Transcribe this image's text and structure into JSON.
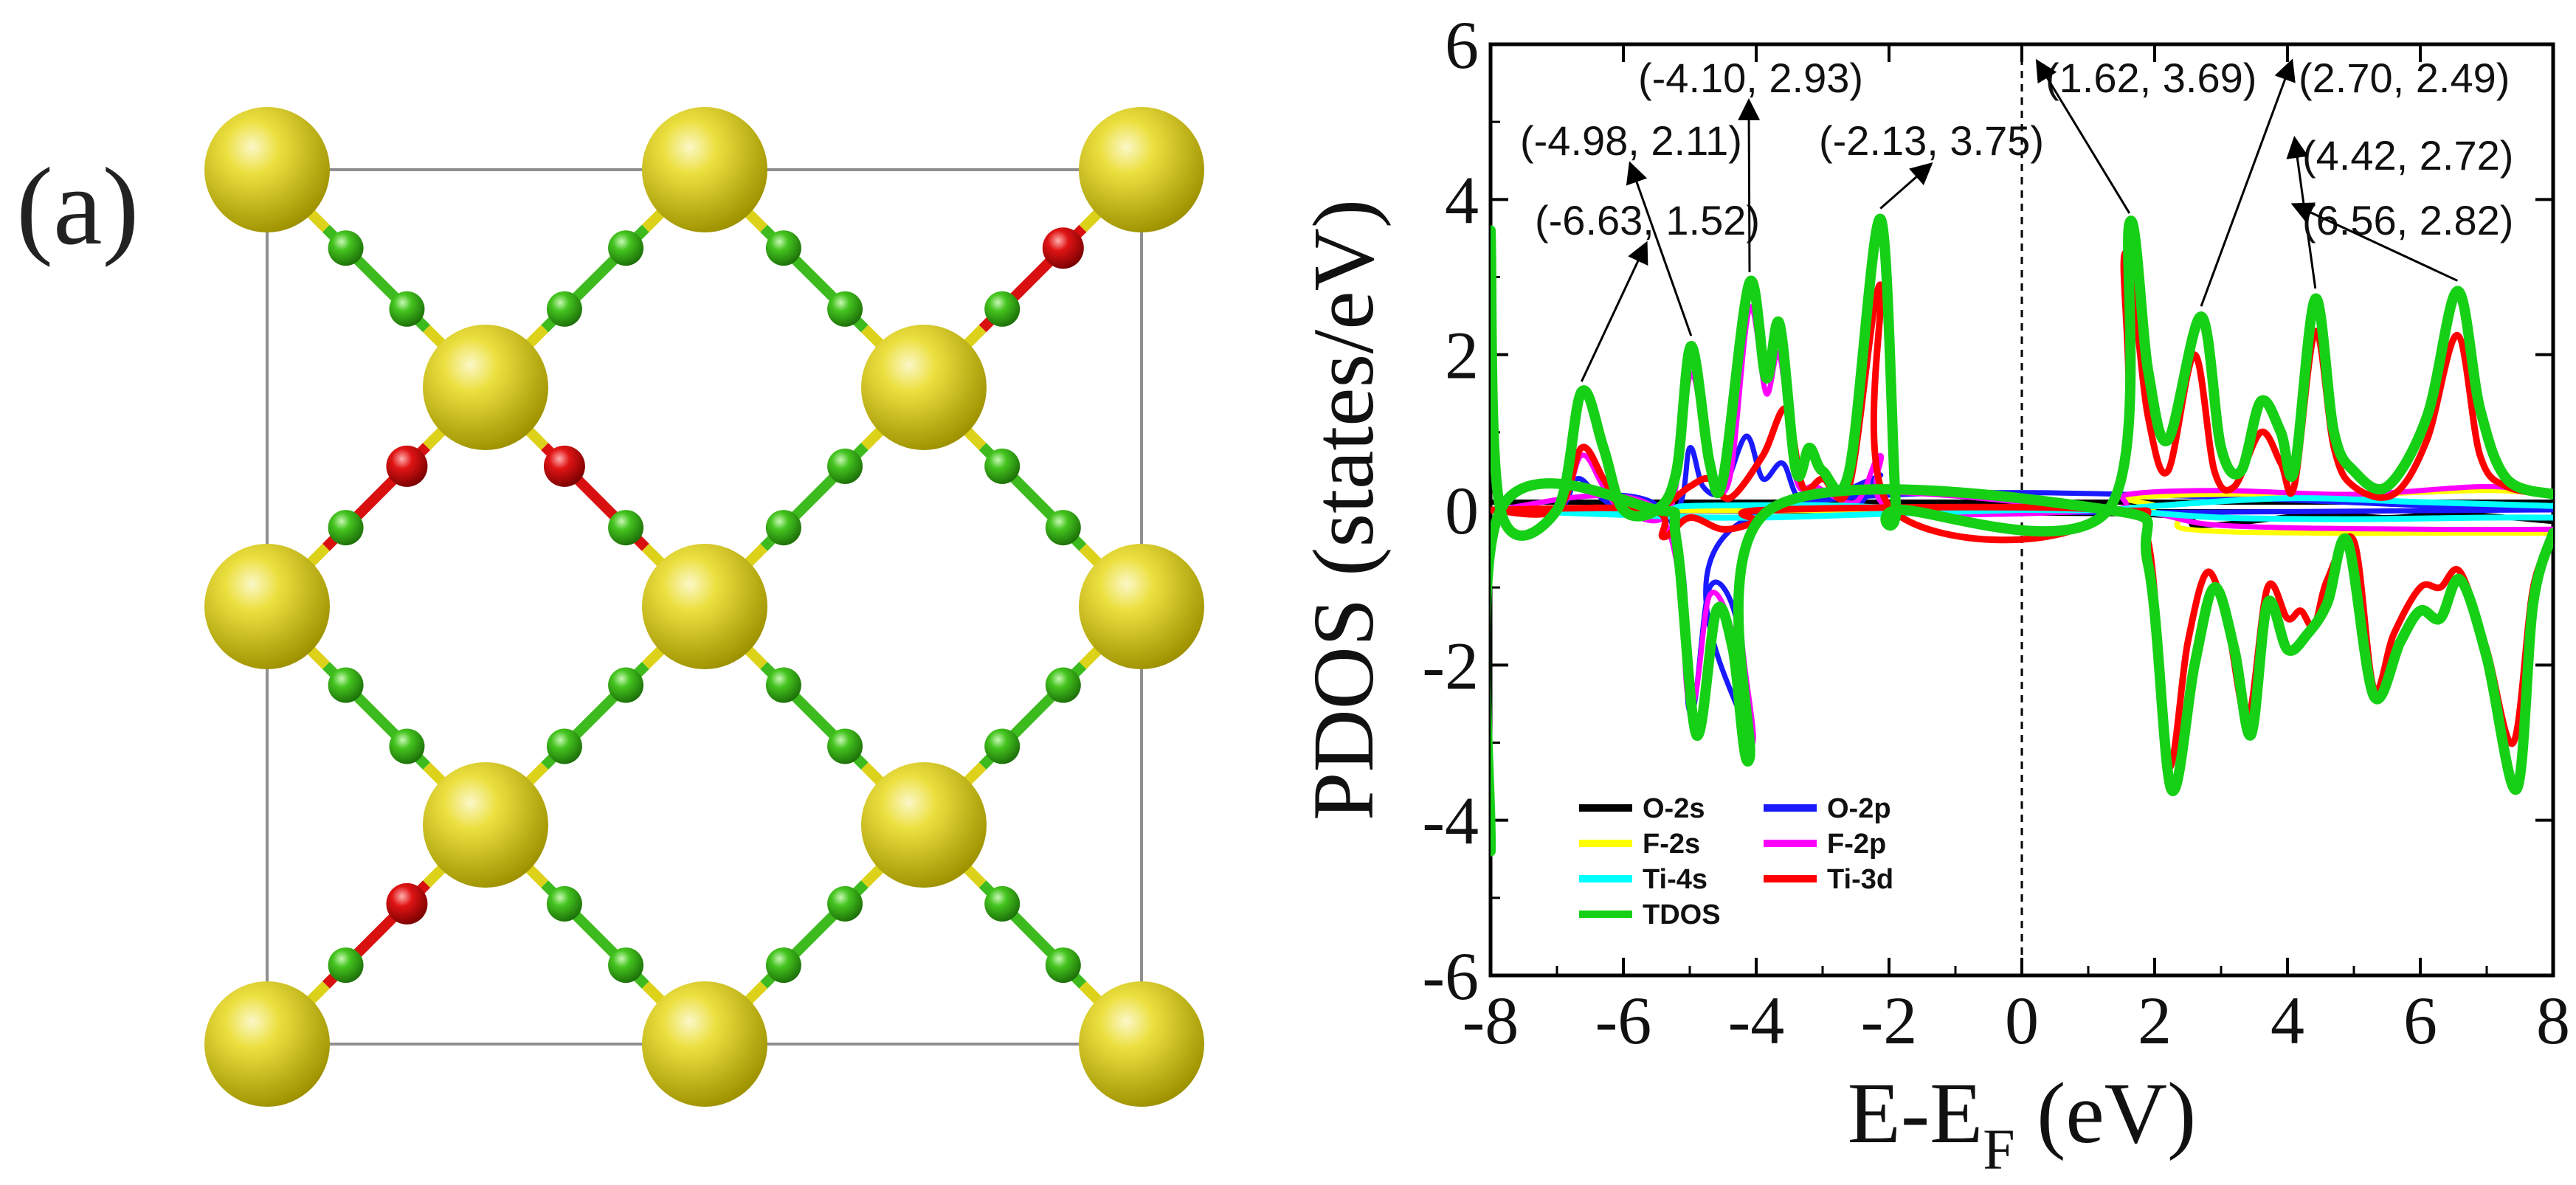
{
  "panel_label": "(a)",
  "structure": {
    "colors": {
      "ti": "#ddd21a",
      "f": "#3dbb1e",
      "o": "#d81010",
      "box": "#8f8f8f"
    }
  },
  "chart_data": {
    "type": "line",
    "xlabel": "E-E",
    "xlabel_sub": "F",
    "xlabel_unit": " (eV)",
    "ylabel": "PDOS (states/eV)",
    "xlim": [
      -8,
      8
    ],
    "ylim": [
      -6,
      6
    ],
    "xticks": [
      -8,
      -6,
      -4,
      -2,
      0,
      2,
      4,
      6,
      8
    ],
    "yticks": [
      -6,
      -4,
      -2,
      0,
      2,
      4,
      6
    ],
    "fermi_level": 0,
    "legend": {
      "position": "bottom-left",
      "columns": 2
    },
    "series": [
      {
        "name": "O-2s",
        "color": "#000000",
        "width": 7,
        "up": [
          [
            -8,
            0.1
          ],
          [
            -4.7,
            0.1
          ],
          [
            -2.5,
            0.1
          ],
          [
            1.5,
            0.1
          ],
          [
            2.5,
            0.1
          ],
          [
            3.5,
            0.1
          ],
          [
            4.6,
            0.1
          ],
          [
            5.6,
            0.1
          ],
          [
            6.6,
            0.1
          ],
          [
            8,
            0.1
          ]
        ],
        "down": [
          [
            -8,
            0
          ],
          [
            1.5,
            -0.05
          ],
          [
            2.7,
            -0.2
          ],
          [
            4.5,
            -0.05
          ],
          [
            5.5,
            -0.1
          ],
          [
            6.5,
            -0.05
          ],
          [
            8,
            -0.15
          ]
        ]
      },
      {
        "name": "O-2p",
        "color": "#1a1aff",
        "width": 7,
        "up": [
          [
            -8,
            0
          ],
          [
            -7,
            0
          ],
          [
            -6.7,
            0.4
          ],
          [
            -6.4,
            0.2
          ],
          [
            -6.0,
            0
          ],
          [
            -5.2,
            0
          ],
          [
            -5.0,
            0.8
          ],
          [
            -4.8,
            0.3
          ],
          [
            -4.5,
            0.25
          ],
          [
            -4.15,
            0.95
          ],
          [
            -3.9,
            0.4
          ],
          [
            -3.6,
            0.6
          ],
          [
            -3.3,
            0.1
          ],
          [
            -2.5,
            0.05
          ],
          [
            -2.13,
            0.45
          ],
          [
            -1.9,
            0
          ],
          [
            8,
            0
          ]
        ],
        "down": [
          [
            -8,
            0
          ],
          [
            -5.4,
            0
          ],
          [
            -5.0,
            -2.6
          ],
          [
            -4.7,
            -1.0
          ],
          [
            -4.3,
            -1.4
          ],
          [
            -4.1,
            -3.0
          ],
          [
            -3.8,
            0
          ],
          [
            8,
            0
          ]
        ]
      },
      {
        "name": "F-2s",
        "color": "#ffff00",
        "width": 7,
        "up": [
          [
            -8,
            0
          ],
          [
            1.3,
            0
          ],
          [
            1.6,
            0.15
          ],
          [
            3.0,
            0.2
          ],
          [
            5.0,
            0.2
          ],
          [
            7.0,
            0.25
          ],
          [
            8,
            0.2
          ]
        ],
        "down": [
          [
            -8,
            0
          ],
          [
            1.3,
            0
          ],
          [
            2.5,
            -0.25
          ],
          [
            4.5,
            -0.3
          ],
          [
            6.5,
            -0.3
          ],
          [
            8,
            -0.3
          ]
        ]
      },
      {
        "name": "F-2p",
        "color": "#ff00ff",
        "width": 7,
        "up": [
          [
            -8,
            0
          ],
          [
            -7.0,
            0
          ],
          [
            -6.63,
            0.7
          ],
          [
            -6.3,
            0.3
          ],
          [
            -6.0,
            0
          ],
          [
            -5.3,
            0
          ],
          [
            -4.98,
            1.75
          ],
          [
            -4.7,
            0.5
          ],
          [
            -4.4,
            0.4
          ],
          [
            -4.1,
            2.6
          ],
          [
            -3.85,
            1.5
          ],
          [
            -3.65,
            2.0
          ],
          [
            -3.4,
            0.4
          ],
          [
            -3.1,
            0.3
          ],
          [
            -2.5,
            0.1
          ],
          [
            -2.13,
            0.7
          ],
          [
            -1.9,
            0
          ],
          [
            1.3,
            0
          ],
          [
            1.6,
            0.2
          ],
          [
            3,
            0.25
          ],
          [
            5,
            0.2
          ],
          [
            7,
            0.3
          ],
          [
            8,
            0.2
          ]
        ],
        "down": [
          [
            -8,
            0
          ],
          [
            -5.5,
            0
          ],
          [
            -5.0,
            -2.5
          ],
          [
            -4.7,
            -1.1
          ],
          [
            -4.35,
            -1.6
          ],
          [
            -4.05,
            -3.0
          ],
          [
            -3.8,
            0
          ],
          [
            1.3,
            0
          ],
          [
            3,
            -0.2
          ],
          [
            6,
            -0.25
          ],
          [
            8,
            -0.25
          ]
        ]
      },
      {
        "name": "Ti-4s",
        "color": "#00ffff",
        "width": 8,
        "up": [
          [
            -8,
            0
          ],
          [
            -5.5,
            0
          ],
          [
            -5.0,
            0.05
          ],
          [
            -3,
            0.06
          ],
          [
            -2,
            0.03
          ],
          [
            0,
            0
          ],
          [
            1.3,
            0
          ],
          [
            2,
            0.05
          ],
          [
            4,
            0.15
          ],
          [
            6,
            0.1
          ],
          [
            8,
            0.05
          ]
        ],
        "down": [
          [
            -8,
            0
          ],
          [
            -5.5,
            -0.08
          ],
          [
            -4,
            -0.1
          ],
          [
            -2,
            -0.05
          ],
          [
            0,
            0
          ],
          [
            1.3,
            0
          ],
          [
            3,
            -0.1
          ],
          [
            5,
            -0.12
          ],
          [
            7,
            -0.1
          ],
          [
            8,
            -0.1
          ]
        ]
      },
      {
        "name": "Ti-3d",
        "color": "#ff0000",
        "width": 9,
        "up": [
          [
            -8,
            0
          ],
          [
            -7.0,
            0
          ],
          [
            -6.63,
            0.8
          ],
          [
            -6.3,
            0.4
          ],
          [
            -6.0,
            0
          ],
          [
            -5.5,
            0
          ],
          [
            -5.0,
            0.3
          ],
          [
            -4.7,
            0.4
          ],
          [
            -4.4,
            0.15
          ],
          [
            -3.9,
            0.7
          ],
          [
            -3.55,
            1.3
          ],
          [
            -3.3,
            0.3
          ],
          [
            -3.0,
            0.4
          ],
          [
            -2.6,
            0.3
          ],
          [
            -2.13,
            2.9
          ],
          [
            -1.95,
            0
          ],
          [
            1.3,
            0
          ],
          [
            1.55,
            3.3
          ],
          [
            1.9,
            1.2
          ],
          [
            2.2,
            0.5
          ],
          [
            2.6,
            2.0
          ],
          [
            2.9,
            0.5
          ],
          [
            3.2,
            0.3
          ],
          [
            3.6,
            1.0
          ],
          [
            3.9,
            0.6
          ],
          [
            4.1,
            0.3
          ],
          [
            4.42,
            2.3
          ],
          [
            4.7,
            0.8
          ],
          [
            5.0,
            0.3
          ],
          [
            5.6,
            0.2
          ],
          [
            6.1,
            0.9
          ],
          [
            6.56,
            2.25
          ],
          [
            6.9,
            0.7
          ],
          [
            7.3,
            0.3
          ],
          [
            8,
            0.2
          ]
        ],
        "down": [
          [
            -8,
            0
          ],
          [
            -5.6,
            0
          ],
          [
            -5.4,
            -0.35
          ],
          [
            -5.0,
            -0.1
          ],
          [
            -4.5,
            -0.25
          ],
          [
            -4.0,
            -0.15
          ],
          [
            -3.8,
            0
          ],
          [
            1.3,
            0
          ],
          [
            1.9,
            -0.4
          ],
          [
            2.2,
            -3.3
          ],
          [
            2.5,
            -1.7
          ],
          [
            2.8,
            -0.8
          ],
          [
            3.1,
            -1.5
          ],
          [
            3.4,
            -2.7
          ],
          [
            3.7,
            -1.0
          ],
          [
            4.0,
            -1.4
          ],
          [
            4.2,
            -1.3
          ],
          [
            4.4,
            -1.5
          ],
          [
            4.6,
            -0.9
          ],
          [
            5.0,
            -0.4
          ],
          [
            5.3,
            -2.3
          ],
          [
            5.6,
            -1.6
          ],
          [
            6.0,
            -1.0
          ],
          [
            6.3,
            -1.0
          ],
          [
            6.6,
            -0.8
          ],
          [
            7.0,
            -1.8
          ],
          [
            7.4,
            -3.0
          ],
          [
            7.7,
            -1.0
          ],
          [
            8,
            -0.4
          ]
        ]
      },
      {
        "name": "TDOS",
        "color": "#16d016",
        "width": 14,
        "up": [
          [
            -8,
            3.6
          ],
          [
            -7.85,
            0
          ],
          [
            -7.0,
            0
          ],
          [
            -6.63,
            1.52
          ],
          [
            -6.3,
            0.8
          ],
          [
            -6.0,
            0
          ],
          [
            -5.5,
            0
          ],
          [
            -5.2,
            0.5
          ],
          [
            -4.98,
            2.11
          ],
          [
            -4.7,
            0.6
          ],
          [
            -4.5,
            0.4
          ],
          [
            -4.1,
            2.93
          ],
          [
            -3.85,
            1.7
          ],
          [
            -3.65,
            2.4
          ],
          [
            -3.4,
            0.5
          ],
          [
            -3.2,
            0.8
          ],
          [
            -3.0,
            0.5
          ],
          [
            -2.6,
            0.5
          ],
          [
            -2.13,
            3.75
          ],
          [
            -1.9,
            0.1
          ],
          [
            -1.8,
            0
          ],
          [
            1.3,
            0
          ],
          [
            1.62,
            3.69
          ],
          [
            1.9,
            1.8
          ],
          [
            2.2,
            0.9
          ],
          [
            2.7,
            2.49
          ],
          [
            3.0,
            0.8
          ],
          [
            3.3,
            0.5
          ],
          [
            3.6,
            1.4
          ],
          [
            3.9,
            1.0
          ],
          [
            4.1,
            0.5
          ],
          [
            4.42,
            2.72
          ],
          [
            4.7,
            1.0
          ],
          [
            5.0,
            0.5
          ],
          [
            5.5,
            0.3
          ],
          [
            6.1,
            1.2
          ],
          [
            6.56,
            2.82
          ],
          [
            6.9,
            1.3
          ],
          [
            7.3,
            0.4
          ],
          [
            8,
            0.2
          ]
        ],
        "down": [
          [
            -8,
            -4.4
          ],
          [
            -7.85,
            0
          ],
          [
            -5.5,
            0
          ],
          [
            -5.2,
            -0.4
          ],
          [
            -4.9,
            -2.9
          ],
          [
            -4.6,
            -1.3
          ],
          [
            -4.35,
            -1.8
          ],
          [
            -4.1,
            -3.2
          ],
          [
            -3.8,
            0
          ],
          [
            1.3,
            0
          ],
          [
            1.9,
            -0.7
          ],
          [
            2.25,
            -3.6
          ],
          [
            2.6,
            -2.0
          ],
          [
            2.9,
            -1.0
          ],
          [
            3.2,
            -1.8
          ],
          [
            3.45,
            -2.9
          ],
          [
            3.7,
            -1.2
          ],
          [
            4.0,
            -1.8
          ],
          [
            4.3,
            -1.6
          ],
          [
            4.6,
            -1.2
          ],
          [
            4.9,
            -0.4
          ],
          [
            5.3,
            -2.4
          ],
          [
            5.7,
            -1.7
          ],
          [
            6.0,
            -1.3
          ],
          [
            6.3,
            -1.4
          ],
          [
            6.6,
            -0.9
          ],
          [
            7.0,
            -1.9
          ],
          [
            7.45,
            -3.6
          ],
          [
            7.7,
            -1.2
          ],
          [
            8,
            -0.3
          ]
        ]
      }
    ],
    "annotations": [
      {
        "text": "(-6.63, 1.52)",
        "x": -6.63,
        "y": 1.52
      },
      {
        "text": "(-4.98, 2.11)",
        "x": -4.98,
        "y": 2.11
      },
      {
        "text": "(-4.10, 2.93)",
        "x": -4.1,
        "y": 2.93
      },
      {
        "text": "(-2.13, 3.75)",
        "x": -2.13,
        "y": 3.75
      },
      {
        "text": "(1.62, 3.69)",
        "x": 1.62,
        "y": 3.69
      },
      {
        "text": "(2.70, 2.49)",
        "x": 2.7,
        "y": 2.49
      },
      {
        "text": "(4.42, 2.72)",
        "x": 4.42,
        "y": 2.72
      },
      {
        "text": "(6.56, 2.82)",
        "x": 6.56,
        "y": 2.82
      }
    ]
  }
}
